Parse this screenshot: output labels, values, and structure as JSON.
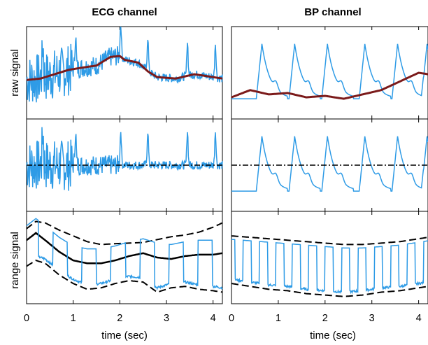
{
  "chart_data": {
    "type": "line",
    "columns": [
      {
        "key": "ecg",
        "title": "ECG channel"
      },
      {
        "key": "bp",
        "title": "BP channel"
      }
    ],
    "row_labels": [
      "raw signal",
      "",
      "range signal"
    ],
    "xlabel": "time (sec)",
    "xlim": [
      0,
      4.2
    ],
    "xticks": [
      "0",
      "1",
      "2",
      "3",
      "4"
    ],
    "grid": false,
    "colors": {
      "signal": "#2e9be6",
      "baseline": "#7b1a1a",
      "range": "#000000"
    },
    "panels": {
      "ecg": {
        "ylim": [
          -1.6,
          1.6
        ],
        "raw_signal_baseline": {
          "x": [
            0,
            0.3,
            0.6,
            0.9,
            1.2,
            1.5,
            1.8,
            2.0,
            2.1,
            2.4,
            2.6,
            2.8,
            3.2,
            3.6,
            4.0,
            4.2
          ],
          "y": [
            -0.25,
            -0.2,
            -0.05,
            0.1,
            0.18,
            0.25,
            0.55,
            0.58,
            0.45,
            0.35,
            0.05,
            -0.15,
            -0.2,
            -0.05,
            -0.15,
            -0.2
          ]
        },
        "range_signal": {
          "x": [
            0,
            0.2,
            0.4,
            0.7,
            1.0,
            1.3,
            1.6,
            1.9,
            2.2,
            2.5,
            2.8,
            3.1,
            3.4,
            3.7,
            4.0,
            4.2
          ],
          "upper": [
            1.0,
            1.25,
            1.2,
            0.95,
            0.75,
            0.55,
            0.45,
            0.48,
            0.5,
            0.52,
            0.62,
            0.72,
            0.78,
            0.88,
            1.05,
            1.2
          ],
          "mid": [
            0.6,
            0.85,
            0.6,
            0.2,
            -0.1,
            -0.2,
            -0.2,
            -0.1,
            0.05,
            0.15,
            0.0,
            -0.05,
            0.05,
            0.1,
            0.1,
            0.15
          ],
          "lower": [
            -0.3,
            -0.1,
            -0.2,
            -0.6,
            -0.9,
            -1.1,
            -1.05,
            -0.9,
            -0.8,
            -0.85,
            -1.2,
            -1.05,
            -1.0,
            -1.1,
            -1.15,
            -1.2
          ]
        }
      },
      "bp": {
        "ylim": [
          -1.6,
          1.6
        ],
        "beat_times": [
          0.65,
          1.35,
          2.05,
          2.85,
          3.55,
          4.18
        ],
        "raw_signal_baseline": {
          "x": [
            0,
            0.4,
            0.8,
            1.2,
            1.6,
            2.0,
            2.4,
            2.8,
            3.2,
            3.6,
            4.0,
            4.2
          ],
          "y": [
            -0.85,
            -0.6,
            -0.75,
            -0.7,
            -0.85,
            -0.8,
            -0.9,
            -0.75,
            -0.6,
            -0.3,
            0.0,
            -0.05
          ]
        },
        "range_signal": {
          "x": [
            0,
            0.4,
            0.8,
            1.2,
            1.6,
            2.0,
            2.4,
            2.8,
            3.2,
            3.6,
            4.0,
            4.2
          ],
          "upper": [
            0.75,
            0.7,
            0.65,
            0.6,
            0.55,
            0.5,
            0.45,
            0.45,
            0.5,
            0.55,
            0.65,
            0.7
          ],
          "lower": [
            -0.9,
            -1.0,
            -1.1,
            -1.15,
            -1.25,
            -1.3,
            -1.35,
            -1.3,
            -1.2,
            -1.15,
            -1.05,
            -1.0
          ]
        }
      }
    }
  }
}
